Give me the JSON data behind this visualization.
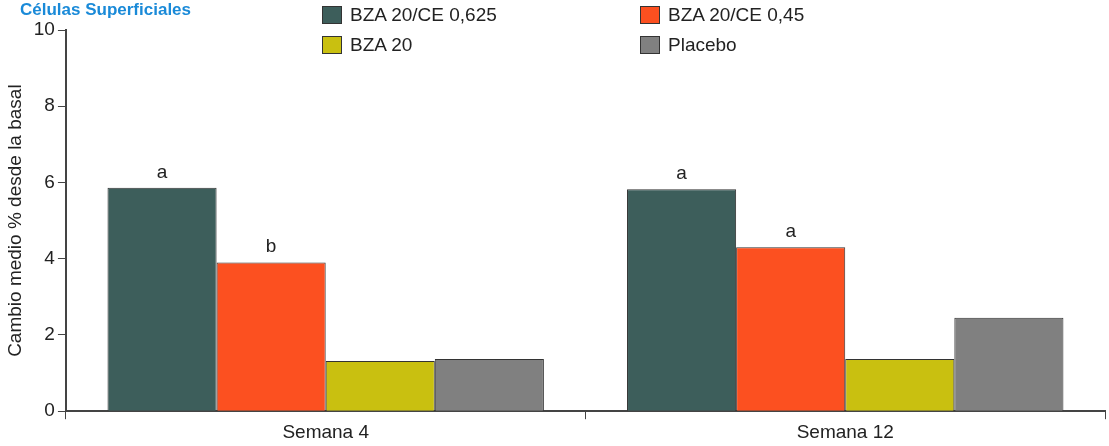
{
  "chart_data": {
    "type": "bar",
    "title": "Células Superficiales",
    "ylabel": "Cambio medio % desde la basal",
    "categories": [
      "Semana 4",
      "Semana 12"
    ],
    "series": [
      {
        "name": "BZA 20/CE 0,625",
        "color": "#3d5e5b",
        "values": [
          5.86,
          5.82
        ],
        "value_labels": [
          "a",
          "a"
        ]
      },
      {
        "name": "BZA 20/CE 0,45",
        "color": "#fc5020",
        "values": [
          3.9,
          4.3
        ],
        "value_labels": [
          "b",
          "a"
        ]
      },
      {
        "name": "BZA 20",
        "color": "#c9c010",
        "values": [
          1.32,
          1.37
        ]
      },
      {
        "name": "Placebo",
        "color": "#808080",
        "values": [
          1.37,
          2.45
        ]
      }
    ],
    "ylim": [
      0,
      10
    ],
    "yticks": [
      0,
      2,
      4,
      6,
      8,
      10
    ],
    "grid": false,
    "legend": "top"
  }
}
